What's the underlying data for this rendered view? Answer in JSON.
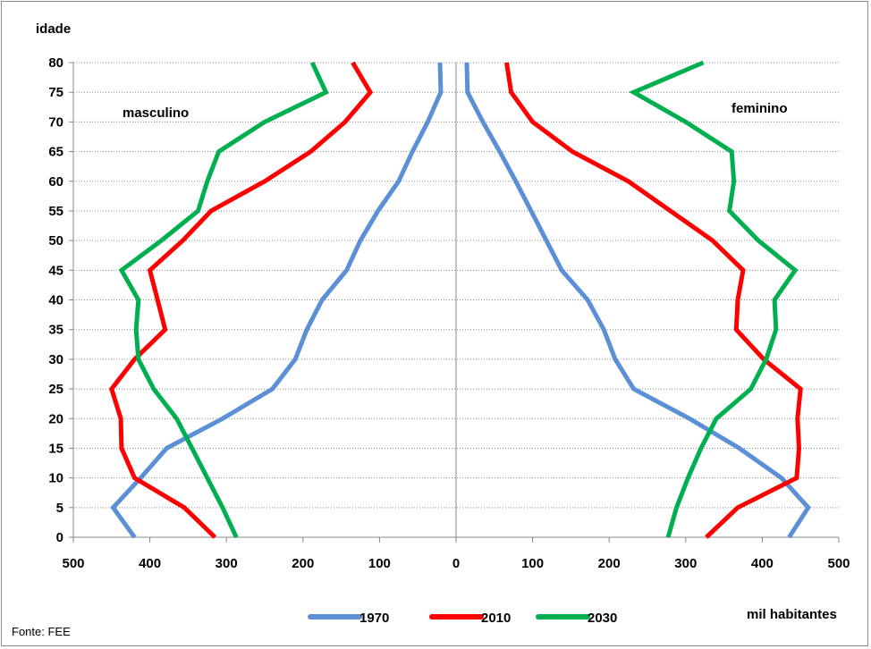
{
  "chart_data": {
    "type": "line",
    "title": "",
    "ylabel": "idade",
    "xlabel": "mil habitantes",
    "left_side_label": "masculino",
    "right_side_label": "feminino",
    "source": "Fonte: FEE",
    "xlim": [
      -500,
      500
    ],
    "ylim": [
      0,
      80
    ],
    "x_tick_labels": [
      "500",
      "400",
      "300",
      "200",
      "100",
      "0",
      "100",
      "200",
      "300",
      "400",
      "500"
    ],
    "y_tick_labels": [
      "0",
      "5",
      "10",
      "15",
      "20",
      "25",
      "30",
      "35",
      "40",
      "45",
      "50",
      "55",
      "60",
      "65",
      "70",
      "75",
      "80"
    ],
    "grid": "horizontal dotted",
    "legend_position": "bottom",
    "ages": [
      0,
      5,
      10,
      15,
      20,
      25,
      30,
      35,
      40,
      45,
      50,
      55,
      60,
      65,
      70,
      75,
      80
    ],
    "series": [
      {
        "name": "1970",
        "color": "#5b8fd6",
        "masculino": [
          420,
          448,
          412,
          378,
          305,
          240,
          210,
          195,
          175,
          143,
          125,
          102,
          75,
          57,
          37,
          20,
          21
        ],
        "feminino": [
          435,
          460,
          425,
          370,
          305,
          232,
          208,
          193,
          172,
          138,
          118,
          98,
          78,
          57,
          35,
          15,
          14
        ]
      },
      {
        "name": "2010",
        "color": "#ff0000",
        "masculino": [
          315,
          355,
          420,
          437,
          438,
          450,
          420,
          380,
          390,
          400,
          357,
          320,
          250,
          190,
          145,
          112,
          135
        ],
        "feminino": [
          327,
          368,
          445,
          448,
          446,
          450,
          402,
          366,
          368,
          375,
          335,
          280,
          225,
          152,
          100,
          72,
          66
        ]
      },
      {
        "name": "2030",
        "color": "#00b050",
        "masculino": [
          287,
          305,
          325,
          345,
          365,
          395,
          415,
          418,
          415,
          437,
          385,
          337,
          325,
          310,
          250,
          170,
          188
        ],
        "feminino": [
          277,
          288,
          303,
          320,
          340,
          385,
          405,
          418,
          416,
          443,
          395,
          357,
          363,
          360,
          300,
          232,
          323
        ]
      }
    ]
  }
}
